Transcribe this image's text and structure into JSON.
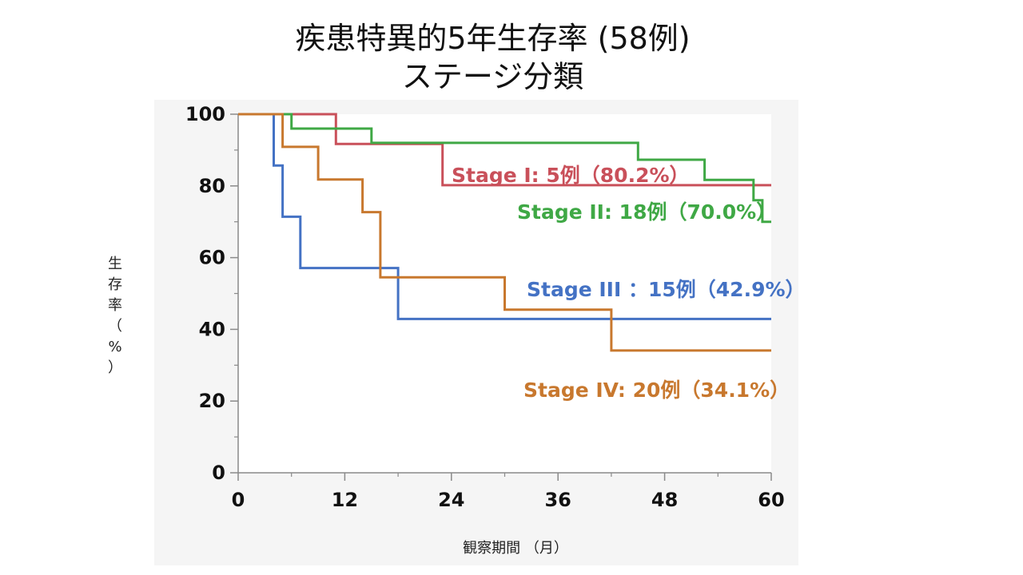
{
  "slide": {
    "title_line1": "疾患特異的5年生存率 (58例)",
    "title_line2": "ステージ分類"
  },
  "chart_data": {
    "type": "line",
    "step": true,
    "ylabel_chars": [
      "生",
      "存",
      "率",
      "（",
      "%",
      "）"
    ],
    "xlabel": "観察期間 （月）",
    "xlim": [
      0,
      60
    ],
    "ylim": [
      0,
      100
    ],
    "xticks": [
      0,
      12,
      24,
      36,
      48,
      60
    ],
    "yticks": [
      0,
      20,
      40,
      60,
      80,
      100
    ],
    "series": [
      {
        "name": "Stage I: 5例（80.2%）",
        "color": "#c9505a",
        "x": [
          0,
          11,
          11,
          23,
          23,
          60
        ],
        "y": [
          100,
          100,
          91.7,
          91.7,
          80.2,
          80.2
        ]
      },
      {
        "name": "Stage II: 18例（70.0%）",
        "color": "#3fa845",
        "x": [
          0,
          6,
          6,
          15,
          15,
          45,
          45,
          52.5,
          52.5,
          58,
          58,
          59,
          59,
          60
        ],
        "y": [
          100,
          100,
          96,
          96,
          92,
          92,
          87.3,
          87.3,
          81.7,
          81.7,
          76,
          76,
          70.0,
          70.0
        ]
      },
      {
        "name": "Stage III ：15例（42.9%）",
        "color": "#4472c4",
        "x": [
          0,
          4,
          4,
          5,
          5,
          7,
          7,
          18,
          18,
          60
        ],
        "y": [
          100,
          100,
          85.7,
          85.7,
          71.4,
          71.4,
          57.1,
          57.1,
          42.9,
          42.9
        ]
      },
      {
        "name": "Stage IV: 20例（34.1%）",
        "color": "#c8782e",
        "x": [
          0,
          5,
          5,
          9,
          9,
          14,
          14,
          16,
          16,
          30,
          30,
          42,
          42,
          60
        ],
        "y": [
          100,
          100,
          90.9,
          90.9,
          81.8,
          81.8,
          72.7,
          72.7,
          54.5,
          54.5,
          45.5,
          45.5,
          34.1,
          34.1
        ]
      }
    ]
  }
}
